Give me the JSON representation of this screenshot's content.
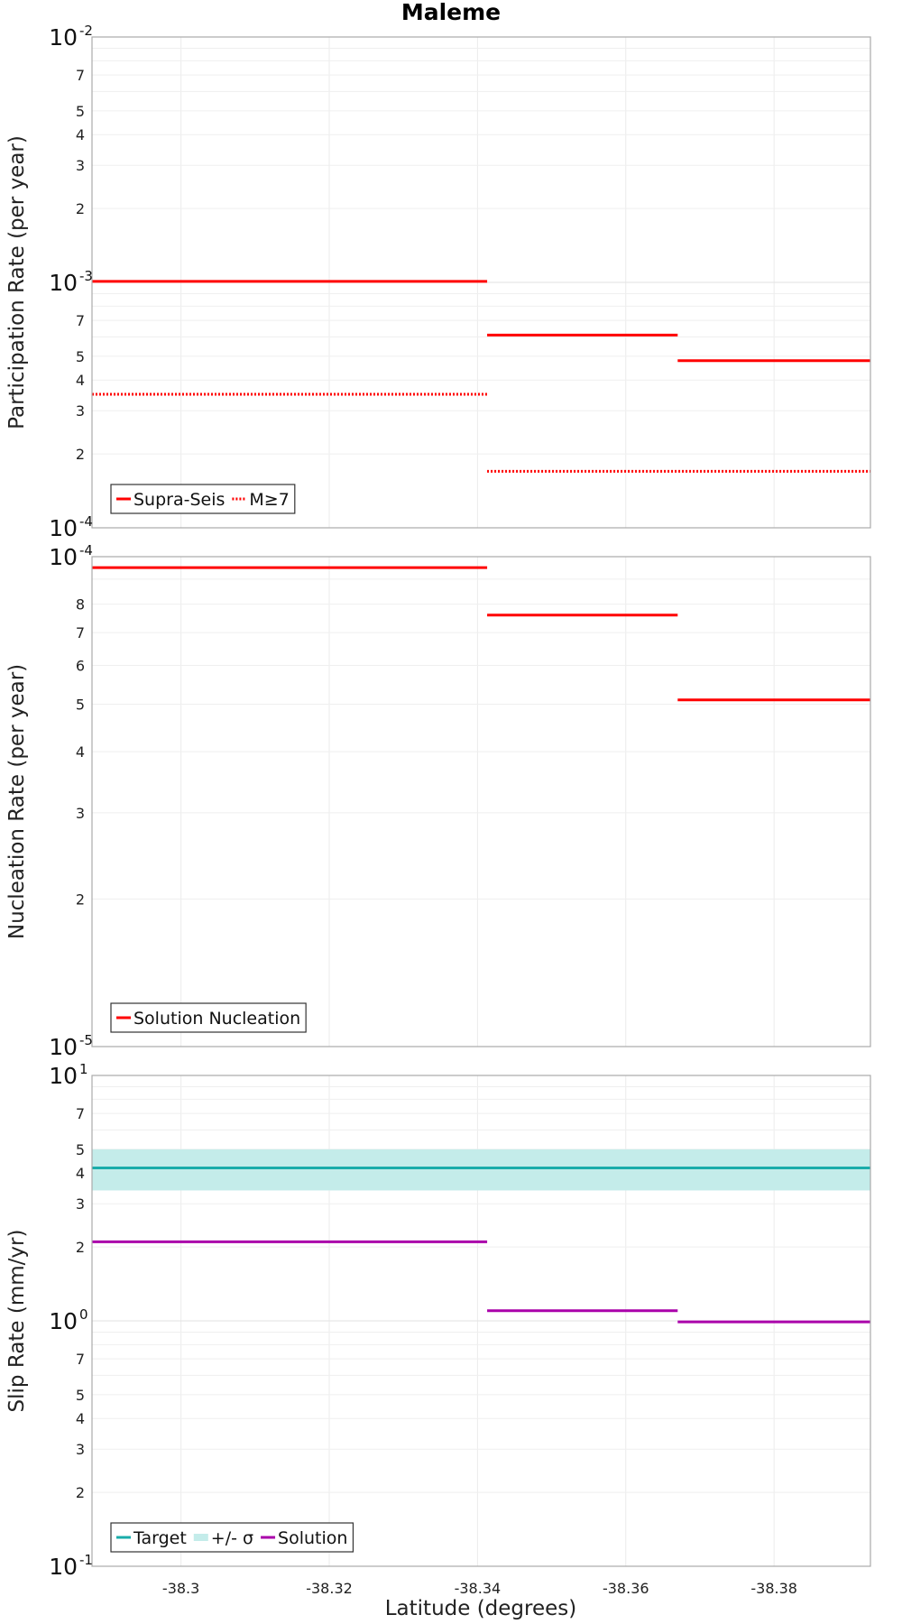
{
  "chart_data": [
    {
      "type": "line",
      "title": "Maleme",
      "ylabel": "Participation Rate (per year)",
      "xlabel": "",
      "yscale": "log",
      "ylim": [
        0.0001,
        0.01
      ],
      "xlim": [
        -38.288,
        -38.393
      ],
      "x_ticks": [
        "-38.3",
        "-38.32",
        "-38.34",
        "-38.36",
        "-38.38"
      ],
      "y_major_ticks": [
        {
          "base": "10",
          "exp": "-2"
        },
        {
          "base": "10",
          "exp": "-3"
        },
        {
          "base": "10",
          "exp": "-4"
        }
      ],
      "y_minor_ticks": [
        "2",
        "3",
        "4",
        "5",
        "7"
      ],
      "grid": true,
      "legend_position": "bottom-left",
      "series": [
        {
          "name": "Supra-Seis",
          "color": "#ff0000",
          "style": "solid",
          "segments": [
            {
              "x": [
                -38.288,
                -38.3413
              ],
              "y": 0.00101
            },
            {
              "x": [
                -38.3413,
                -38.367
              ],
              "y": 0.00061
            },
            {
              "x": [
                -38.367,
                -38.393
              ],
              "y": 0.00048
            }
          ]
        },
        {
          "name": "M≥7",
          "color": "#ff0000",
          "style": "dotted",
          "segments": [
            {
              "x": [
                -38.288,
                -38.3413
              ],
              "y": 0.00035
            },
            {
              "x": [
                -38.3413,
                -38.393
              ],
              "y": 0.00017
            }
          ]
        }
      ]
    },
    {
      "type": "line",
      "title": "",
      "ylabel": "Nucleation Rate (per year)",
      "xlabel": "",
      "yscale": "log",
      "ylim": [
        1e-05,
        0.0001
      ],
      "xlim": [
        -38.288,
        -38.393
      ],
      "x_ticks": [
        "-38.3",
        "-38.32",
        "-38.34",
        "-38.36",
        "-38.38"
      ],
      "y_major_ticks": [
        {
          "base": "10",
          "exp": "-4"
        },
        {
          "base": "10",
          "exp": "-5"
        }
      ],
      "y_minor_ticks": [
        "2",
        "3",
        "4",
        "5",
        "6",
        "7",
        "8"
      ],
      "grid": true,
      "legend_position": "bottom-left",
      "series": [
        {
          "name": "Solution Nucleation",
          "color": "#ff0000",
          "style": "solid",
          "segments": [
            {
              "x": [
                -38.288,
                -38.3413
              ],
              "y": 9.5e-05
            },
            {
              "x": [
                -38.3413,
                -38.367
              ],
              "y": 7.6e-05
            },
            {
              "x": [
                -38.367,
                -38.393
              ],
              "y": 5.1e-05
            }
          ]
        }
      ]
    },
    {
      "type": "line",
      "title": "",
      "ylabel": "Slip Rate (mm/yr)",
      "xlabel": "Latitude (degrees)",
      "yscale": "log",
      "ylim": [
        0.1,
        10
      ],
      "xlim": [
        -38.288,
        -38.393
      ],
      "x_ticks": [
        "-38.3",
        "-38.32",
        "-38.34",
        "-38.36",
        "-38.38"
      ],
      "y_major_ticks": [
        {
          "base": "10",
          "exp": "1"
        },
        {
          "base": "10",
          "exp": "0"
        },
        {
          "base": "10",
          "exp": "-1"
        }
      ],
      "y_minor_ticks": [
        "2",
        "3",
        "4",
        "5",
        "7"
      ],
      "grid": true,
      "legend_position": "bottom-left",
      "band": {
        "name": "+/- σ",
        "color": "#c4ecea",
        "y_low": 3.4,
        "y_high": 5.0
      },
      "series": [
        {
          "name": "Target",
          "color": "#1aacaa",
          "style": "solid",
          "segments": [
            {
              "x": [
                -38.288,
                -38.393
              ],
              "y": 4.2
            }
          ]
        },
        {
          "name": "Solution",
          "color": "#aa00aa",
          "style": "solid",
          "segments": [
            {
              "x": [
                -38.288,
                -38.3413
              ],
              "y": 2.1
            },
            {
              "x": [
                -38.3413,
                -38.367
              ],
              "y": 1.1
            },
            {
              "x": [
                -38.367,
                -38.393
              ],
              "y": 0.99
            }
          ]
        }
      ]
    }
  ]
}
